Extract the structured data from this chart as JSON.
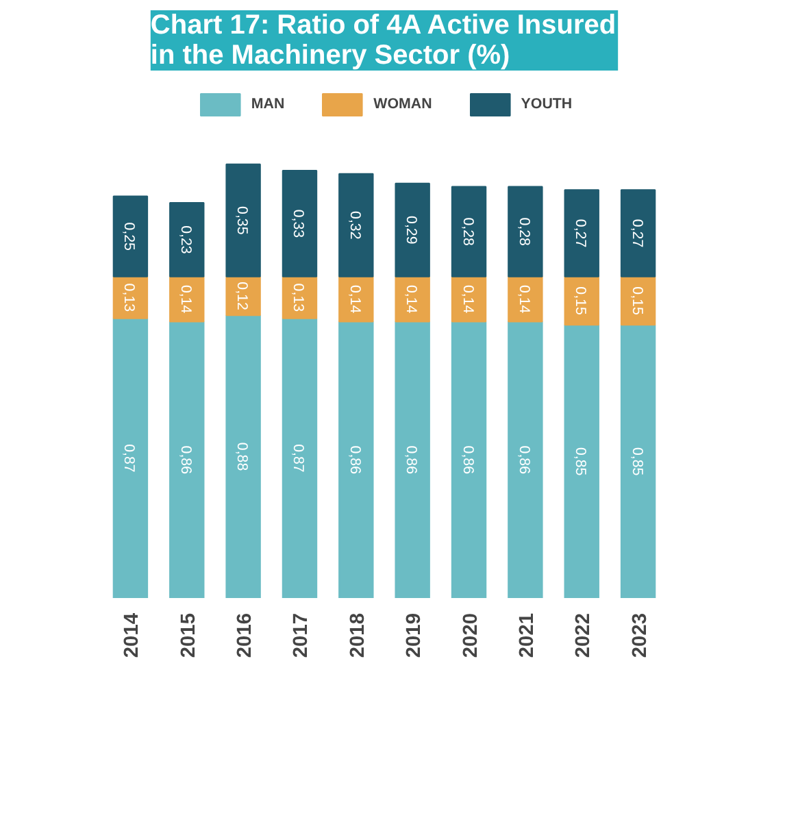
{
  "chart_data": {
    "type": "bar",
    "title": "Chart 17: Ratio of 4A Active Insured\nin the Machinery Sector (%)",
    "categories": [
      "2014",
      "2015",
      "2016",
      "2017",
      "2018",
      "2019",
      "2020",
      "2021",
      "2022",
      "2023"
    ],
    "stacked": true,
    "legend": "top",
    "series": [
      {
        "name": "MAN",
        "color": "#6bbcc4",
        "values": [
          0.87,
          0.86,
          0.88,
          0.87,
          0.86,
          0.86,
          0.86,
          0.86,
          0.85,
          0.85
        ],
        "value_labels": [
          "0,87",
          "0,86",
          "0,88",
          "0,87",
          "0,86",
          "0,86",
          "0,86",
          "0,86",
          "0,85",
          "0,85"
        ]
      },
      {
        "name": "WOMAN",
        "color": "#e8a54a",
        "values": [
          0.13,
          0.14,
          0.12,
          0.13,
          0.14,
          0.14,
          0.14,
          0.14,
          0.15,
          0.15
        ],
        "value_labels": [
          "0,13",
          "0,14",
          "0,12",
          "0,13",
          "0,14",
          "0,14",
          "0,14",
          "0,14",
          "0,15",
          "0,15"
        ]
      },
      {
        "name": "YOUTH",
        "color": "#1f5a6e",
        "values": [
          0.25,
          0.23,
          0.35,
          0.33,
          0.32,
          0.29,
          0.28,
          0.28,
          0.27,
          0.27
        ],
        "value_labels": [
          "0,25",
          "0,23",
          "0,35",
          "0,33",
          "0,32",
          "0,29",
          "0,28",
          "0,28",
          "0,27",
          "0,27"
        ]
      }
    ]
  }
}
